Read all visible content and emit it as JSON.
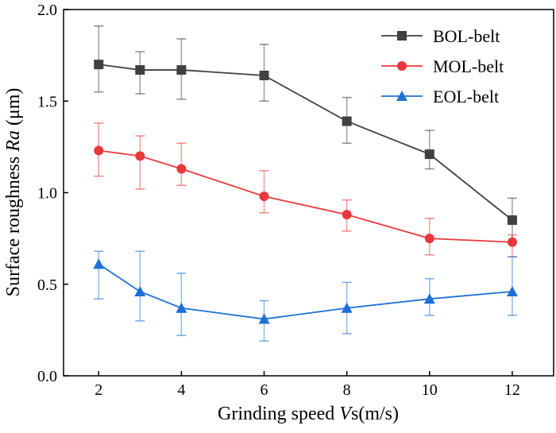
{
  "chart_data": {
    "type": "line",
    "title": "",
    "xlabel_parts": [
      "Grinding speed ",
      "V",
      "s(m/s)"
    ],
    "ylabel_parts": [
      "Surface roughness ",
      "Ra",
      " (μm)"
    ],
    "xlim": [
      1.15,
      13.0
    ],
    "ylim": [
      0,
      2.0
    ],
    "xticks": [
      2,
      4,
      6,
      8,
      10,
      12
    ],
    "yticks": [
      0.0,
      0.5,
      1.0,
      1.5,
      2.0
    ],
    "ytick_labels": [
      "0.0",
      "0.5",
      "1.0",
      "1.5",
      "2.0"
    ],
    "legend_position": "top-right",
    "x": [
      2,
      3,
      4,
      6,
      8,
      10,
      12
    ],
    "series": [
      {
        "name": "BOL-belt",
        "color": "#404040",
        "marker": "square",
        "values": [
          1.7,
          1.67,
          1.67,
          1.64,
          1.39,
          1.21,
          0.85
        ],
        "err_upper": [
          1.91,
          1.77,
          1.84,
          1.81,
          1.52,
          1.34,
          0.97
        ],
        "err_lower": [
          1.55,
          1.54,
          1.51,
          1.5,
          1.27,
          1.13,
          0.73
        ]
      },
      {
        "name": "MOL-belt",
        "color": "#e8383d",
        "marker": "circle",
        "values": [
          1.23,
          1.2,
          1.13,
          0.98,
          0.88,
          0.75,
          0.73
        ],
        "err_upper": [
          1.38,
          1.31,
          1.27,
          1.12,
          0.96,
          0.86,
          0.77
        ],
        "err_lower": [
          1.09,
          1.02,
          1.04,
          0.89,
          0.79,
          0.66,
          0.65
        ]
      },
      {
        "name": "EOL-belt",
        "color": "#1f6fd6",
        "marker": "triangle",
        "values": [
          0.61,
          0.46,
          0.37,
          0.31,
          0.37,
          0.42,
          0.46
        ],
        "err_upper": [
          0.68,
          0.68,
          0.56,
          0.41,
          0.51,
          0.53,
          0.65
        ],
        "err_lower": [
          0.42,
          0.3,
          0.22,
          0.19,
          0.23,
          0.33,
          0.33
        ]
      }
    ]
  }
}
